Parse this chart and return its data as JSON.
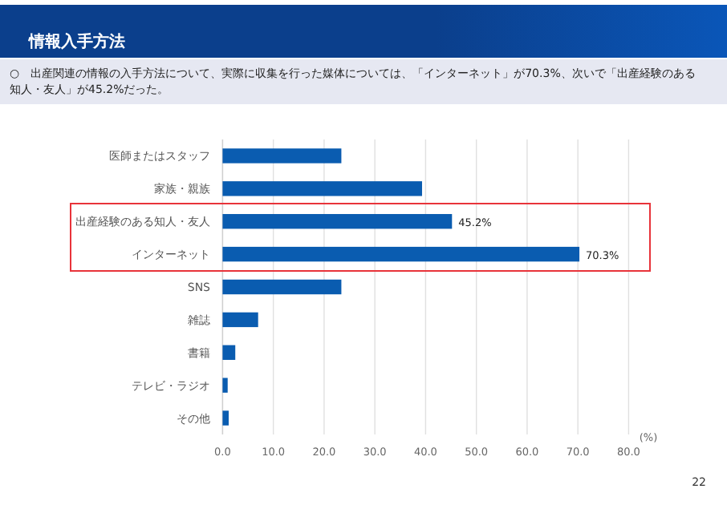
{
  "chart_data": {
    "type": "bar",
    "orientation": "horizontal",
    "title": "情報入手方法",
    "subtitle": "○　出産関連の情報の入手方法について、実際に収集を行った媒体については、「インターネット」が70.3%、次いで「出産経験のある知人・友人」が45.2%だった。",
    "categories": [
      "医師またはスタッフ",
      "家族・親族",
      "出産経験のある知人・友人",
      "インターネット",
      "SNS",
      "雑誌",
      "書籍",
      "テレビ・ラジオ",
      "その他"
    ],
    "values": [
      23.4,
      39.3,
      45.2,
      70.3,
      23.4,
      7.0,
      2.5,
      1.0,
      1.2
    ],
    "value_labels": [
      null,
      null,
      "45.2%",
      "70.3%",
      null,
      null,
      null,
      null,
      null
    ],
    "color": "#0a5cb0",
    "xlabel": "(%)",
    "xlim": [
      0,
      80
    ],
    "xticks": [
      {
        "value": 0,
        "label": "0.0"
      },
      {
        "value": 10,
        "label": "10.0"
      },
      {
        "value": 20,
        "label": "20.0"
      },
      {
        "value": 30,
        "label": "30.0"
      },
      {
        "value": 40,
        "label": "40.0"
      },
      {
        "value": 50,
        "label": "50.0"
      },
      {
        "value": 60,
        "label": "60.0"
      },
      {
        "value": 70,
        "label": "70.0"
      },
      {
        "value": 80,
        "label": "80.0"
      }
    ],
    "grid": "x",
    "annotations": [
      "22"
    ]
  }
}
